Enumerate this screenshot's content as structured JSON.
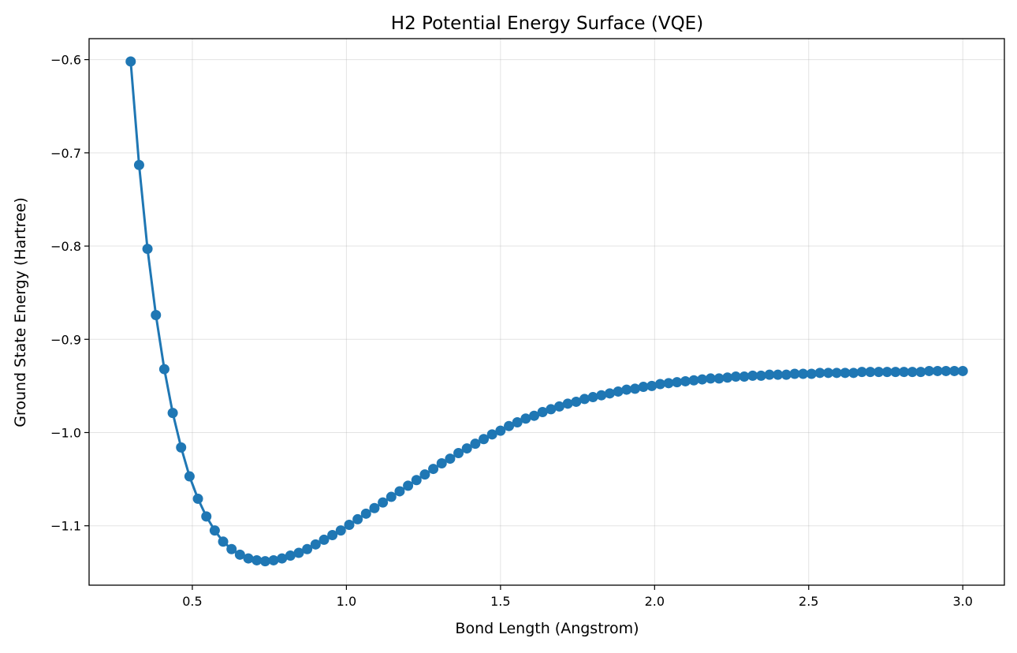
{
  "chart_data": {
    "type": "line",
    "title": "H2 Potential Energy Surface (VQE)",
    "xlabel": "Bond Length (Angstrom)",
    "ylabel": "Ground State Energy (Hartree)",
    "xlim": [
      0.165,
      3.135
    ],
    "ylim": [
      -1.1637,
      -0.5775
    ],
    "xticks": [
      0.5,
      1.0,
      1.5,
      2.0,
      2.5,
      3.0
    ],
    "xtick_labels": [
      "0.5",
      "1.0",
      "1.5",
      "2.0",
      "2.5",
      "3.0"
    ],
    "yticks": [
      -1.1,
      -1.0,
      -0.9,
      -0.8,
      -0.7,
      -0.6
    ],
    "ytick_labels": [
      "−1.1",
      "−1.0",
      "−0.9",
      "−0.8",
      "−0.7",
      "−0.6"
    ],
    "grid": true,
    "legend": "none",
    "series": [
      {
        "color": "#1f77b4",
        "marker": "circle",
        "x": [
          0.3,
          0.3273,
          0.3545,
          0.3818,
          0.4091,
          0.4364,
          0.4636,
          0.4909,
          0.5182,
          0.5455,
          0.5727,
          0.6,
          0.6273,
          0.6545,
          0.6818,
          0.7091,
          0.7364,
          0.7636,
          0.7909,
          0.8182,
          0.8455,
          0.8727,
          0.9,
          0.9273,
          0.9545,
          0.9818,
          1.0091,
          1.0364,
          1.0636,
          1.0909,
          1.1182,
          1.1455,
          1.1727,
          1.2,
          1.2273,
          1.2545,
          1.2818,
          1.3091,
          1.3364,
          1.3636,
          1.3909,
          1.4182,
          1.4455,
          1.4727,
          1.5,
          1.5273,
          1.5545,
          1.5818,
          1.6091,
          1.6364,
          1.6636,
          1.6909,
          1.7182,
          1.7455,
          1.7727,
          1.8,
          1.8273,
          1.8545,
          1.8818,
          1.9091,
          1.9364,
          1.9636,
          1.9909,
          2.0182,
          2.0455,
          2.0727,
          2.1,
          2.1273,
          2.1545,
          2.1818,
          2.2091,
          2.2364,
          2.2636,
          2.2909,
          2.3182,
          2.3455,
          2.3727,
          2.4,
          2.4273,
          2.4545,
          2.4818,
          2.5091,
          2.5364,
          2.5636,
          2.5909,
          2.6182,
          2.6455,
          2.6727,
          2.7,
          2.7273,
          2.7545,
          2.7818,
          2.8091,
          2.8364,
          2.8636,
          2.8909,
          2.9182,
          2.9455,
          2.9727,
          3.0
        ],
        "y": [
          -0.602,
          -0.713,
          -0.803,
          -0.874,
          -0.932,
          -0.979,
          -1.016,
          -1.047,
          -1.071,
          -1.09,
          -1.105,
          -1.117,
          -1.125,
          -1.131,
          -1.135,
          -1.137,
          -1.138,
          -1.137,
          -1.135,
          -1.132,
          -1.129,
          -1.125,
          -1.12,
          -1.115,
          -1.11,
          -1.105,
          -1.099,
          -1.093,
          -1.087,
          -1.081,
          -1.075,
          -1.069,
          -1.063,
          -1.057,
          -1.051,
          -1.045,
          -1.039,
          -1.033,
          -1.028,
          -1.022,
          -1.017,
          -1.012,
          -1.007,
          -1.002,
          -0.998,
          -0.993,
          -0.989,
          -0.985,
          -0.982,
          -0.978,
          -0.975,
          -0.972,
          -0.969,
          -0.967,
          -0.964,
          -0.962,
          -0.96,
          -0.958,
          -0.956,
          -0.954,
          -0.953,
          -0.951,
          -0.95,
          -0.948,
          -0.947,
          -0.946,
          -0.945,
          -0.944,
          -0.943,
          -0.942,
          -0.942,
          -0.941,
          -0.94,
          -0.94,
          -0.939,
          -0.939,
          -0.938,
          -0.938,
          -0.938,
          -0.937,
          -0.937,
          -0.937,
          -0.936,
          -0.936,
          -0.936,
          -0.936,
          -0.936,
          -0.935,
          -0.935,
          -0.935,
          -0.935,
          -0.935,
          -0.935,
          -0.935,
          -0.935,
          -0.934,
          -0.934,
          -0.934,
          -0.934,
          -0.934
        ]
      }
    ]
  }
}
